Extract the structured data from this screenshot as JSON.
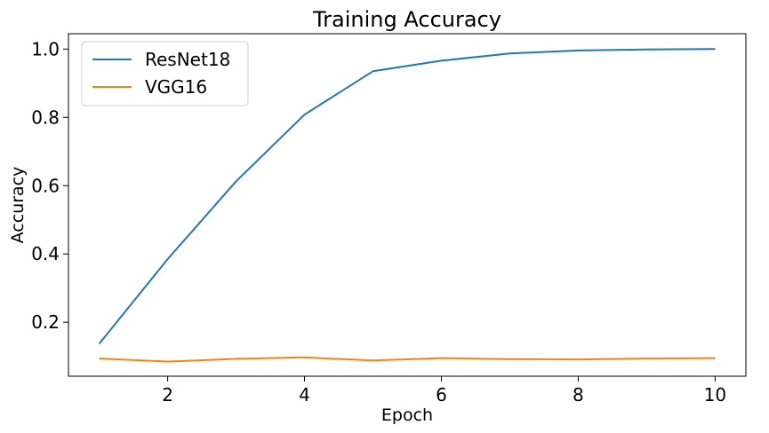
{
  "chart_data": {
    "type": "line",
    "title": "Training Accuracy",
    "xlabel": "Epoch",
    "ylabel": "Accuracy",
    "x": [
      1,
      2,
      3,
      4,
      5,
      6,
      7,
      8,
      9,
      10
    ],
    "xlim": [
      0.55,
      10.45
    ],
    "ylim": [
      0.042,
      1.045
    ],
    "xticks": [
      2,
      4,
      6,
      8,
      10
    ],
    "yticks": [
      0.2,
      0.4,
      0.6,
      0.8,
      1.0
    ],
    "xtick_labels": [
      "2",
      "4",
      "6",
      "8",
      "10"
    ],
    "ytick_labels": [
      "0.2",
      "0.4",
      "0.6",
      "0.8",
      "1.0"
    ],
    "grid": false,
    "legend_position": "top-left",
    "series": [
      {
        "name": "ResNet18",
        "color": "#1f77b4",
        "values": [
          0.137,
          0.385,
          0.613,
          0.808,
          0.935,
          0.966,
          0.987,
          0.996,
          0.999,
          1.0
        ]
      },
      {
        "name": "VGG16",
        "color": "#ff7f0e",
        "values": [
          0.094,
          0.085,
          0.093,
          0.097,
          0.088,
          0.095,
          0.092,
          0.091,
          0.094,
          0.095
        ]
      }
    ]
  }
}
